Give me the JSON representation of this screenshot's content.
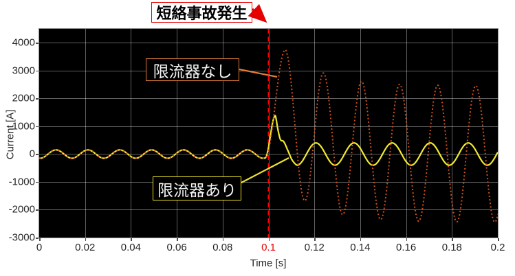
{
  "figure": {
    "background": "#ffffff",
    "plot_background": "#000000",
    "grid_color": "rgba(255,255,255,0.38)",
    "axis_box_color": "#8f8f8f",
    "tick_text_color": "#262626"
  },
  "annotation": {
    "text": "短絡事故発生",
    "text_color": "#000000",
    "bg": "#ffffff",
    "border_color": "#e60000",
    "arrow_color": "#e60000"
  },
  "labels": {
    "no_limiter": {
      "text": "限流器なし",
      "text_color": "#f2f2f2",
      "bg": "#000000",
      "border_color": "#e07b39"
    },
    "with_limiter": {
      "text": "限流器あり",
      "text_color": "#f2f2f2",
      "bg": "#000000",
      "border_color": "#f0e32a"
    }
  },
  "event_line": {
    "t": 0.1,
    "color": "#ff0000",
    "style": "dashed",
    "label": "短絡事故発生"
  },
  "chart_data": {
    "type": "line",
    "xlabel": "Time [s]",
    "ylabel": "Current [A]",
    "xlim": [
      0,
      0.2
    ],
    "ylim": [
      -3000,
      4500
    ],
    "grid": true,
    "fault_time_s": 0.1,
    "x_ticks": [
      {
        "v": 0,
        "label": "0"
      },
      {
        "v": 0.02,
        "label": "0.02"
      },
      {
        "v": 0.04,
        "label": "0.04"
      },
      {
        "v": 0.06,
        "label": "0.06"
      },
      {
        "v": 0.08,
        "label": "0.08"
      },
      {
        "v": 0.1,
        "label": "0.1",
        "color": "#e60000"
      },
      {
        "v": 0.12,
        "label": "0.12"
      },
      {
        "v": 0.14,
        "label": "0.14"
      },
      {
        "v": 0.16,
        "label": "0.16"
      },
      {
        "v": 0.18,
        "label": "0.18"
      },
      {
        "v": 0.2,
        "label": "0.2"
      }
    ],
    "y_ticks": [
      {
        "v": 4000,
        "label": "4000"
      },
      {
        "v": 3000,
        "label": "3000"
      },
      {
        "v": 2000,
        "label": "2000"
      },
      {
        "v": 1000,
        "label": "1000"
      },
      {
        "v": 0,
        "label": "0"
      },
      {
        "v": -1000,
        "label": "-1000"
      },
      {
        "v": -2000,
        "label": "-2000"
      },
      {
        "v": -3000,
        "label": "-3000"
      }
    ],
    "series": [
      {
        "name": "限流器なし",
        "color": "#d2501a",
        "line_style": "dotted",
        "line_width": 2,
        "pre_fault": {
          "amplitude_A": 150,
          "period_s": 0.0139,
          "trough_at_s": 0.0004
        },
        "rise": {
          "t_start": 0.0985,
          "v_start": -140,
          "t_peak": 0.1074,
          "v_peak": 3750
        },
        "post_fault": {
          "ac_amplitude_A": 2450,
          "period_s": 0.0166,
          "peak_at_s": 0.1074,
          "dc_amplitude_A": 1300,
          "dc_decay_tau_s": 0.016
        },
        "key_peaks_tA": [
          [
            0.107,
            3750
          ],
          [
            0.124,
            2900
          ],
          [
            0.141,
            2610
          ],
          [
            0.157,
            2510
          ],
          [
            0.174,
            2470
          ],
          [
            0.19,
            2455
          ]
        ],
        "key_troughs_tA": [
          [
            0.116,
            -1680
          ],
          [
            0.132,
            -2175
          ],
          [
            0.149,
            -2330
          ],
          [
            0.165,
            -2405
          ],
          [
            0.182,
            -2435
          ],
          [
            0.198,
            -2445
          ]
        ]
      },
      {
        "name": "限流器あり",
        "color": "#f2ea2e",
        "line_style": "solid",
        "line_width": 2.2,
        "pre_fault": {
          "amplitude_A": 150,
          "period_s": 0.0139,
          "trough_at_s": 0.0004
        },
        "rise": {
          "t_start": 0.0985,
          "v_start": -140,
          "t_peak": 0.103,
          "v_peak": 1380
        },
        "decay_points_tA": [
          [
            0.103,
            1380
          ],
          [
            0.1041,
            880
          ],
          [
            0.1052,
            520
          ],
          [
            0.1066,
            450
          ],
          [
            0.1082,
            170
          ],
          [
            0.1102,
            -200
          ],
          [
            0.1124,
            -400
          ]
        ],
        "post_fault": {
          "ac_amplitude_A": 400,
          "period_s": 0.0166,
          "trough_at_s": 0.1124
        }
      }
    ]
  }
}
